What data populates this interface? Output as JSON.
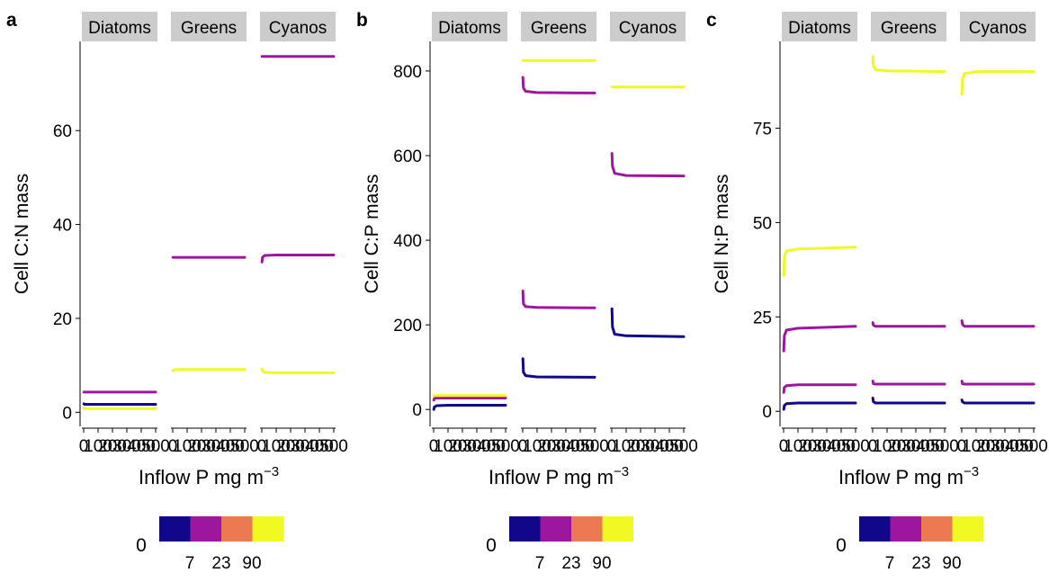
{
  "colors": {
    "strip_bg": "#cccccc",
    "axis": "#000000",
    "series_0_7": "#10078a",
    "series_7_23": "#9c179e",
    "series_23_90": "#ed7953",
    "series_90": "#f0f921"
  },
  "legend": {
    "zero_label": "0",
    "tick_labels": [
      "7",
      "23",
      "90"
    ],
    "swatches": [
      "#10078a",
      "#9c179e",
      "#ed7953",
      "#f0f921"
    ]
  },
  "chart_data": [
    {
      "panel_label": "a",
      "type": "line",
      "ylabel": "Cell C:N mass",
      "xlabel": "Inflow P mg m",
      "xlabel_sup": "−3",
      "facets": [
        "Diatoms",
        "Greens",
        "Cyanos"
      ],
      "xlim": [
        0,
        500
      ],
      "x_ticks": [
        0,
        100,
        200,
        300,
        400,
        500
      ],
      "x_tick_labels": [
        "0",
        "100",
        "200",
        "300",
        "400",
        "500"
      ],
      "ylim": [
        -3,
        79
      ],
      "y_ticks": [
        0,
        20,
        40,
        60
      ],
      "y_tick_labels": [
        "0",
        "20",
        "40",
        "60"
      ],
      "series": [
        {
          "facet": 0,
          "color": "#10078a",
          "x": [
            1,
            5,
            20,
            100,
            500
          ],
          "y": [
            1.8,
            1.7,
            1.7,
            1.7,
            1.7
          ]
        },
        {
          "facet": 0,
          "color": "#9c179e",
          "x": [
            1,
            5,
            20,
            100,
            500
          ],
          "y": [
            4.3,
            4.3,
            4.3,
            4.3,
            4.3
          ]
        },
        {
          "facet": 0,
          "color": "#f0f921",
          "x": [
            1,
            5,
            20,
            100,
            500
          ],
          "y": [
            0.9,
            0.8,
            0.8,
            0.8,
            0.8
          ]
        },
        {
          "facet": 1,
          "color": "#9c179e",
          "x": [
            1,
            5,
            20,
            100,
            500
          ],
          "y": [
            33,
            33,
            33,
            33,
            33
          ]
        },
        {
          "facet": 1,
          "color": "#f0f921",
          "x": [
            1,
            5,
            20,
            100,
            500
          ],
          "y": [
            8.8,
            9.0,
            9.1,
            9.1,
            9.1
          ]
        },
        {
          "facet": 2,
          "color": "#9c179e",
          "x": [
            1,
            5,
            20,
            100,
            500
          ],
          "y": [
            32,
            33,
            33.4,
            33.5,
            33.5
          ]
        },
        {
          "facet": 2,
          "color": "#f0f921",
          "x": [
            1,
            5,
            20,
            100,
            500
          ],
          "y": [
            9.2,
            8.8,
            8.5,
            8.4,
            8.4
          ]
        },
        {
          "facet": 2,
          "color": "#9c179e",
          "x": [
            1,
            5,
            20,
            100,
            500
          ],
          "y": [
            75.8,
            75.8,
            75.8,
            75.8,
            75.8
          ]
        }
      ]
    },
    {
      "panel_label": "b",
      "type": "line",
      "ylabel": "Cell C:P mass",
      "xlabel": "Inflow P mg m",
      "xlabel_sup": "−3",
      "facets": [
        "Diatoms",
        "Greens",
        "Cyanos"
      ],
      "xlim": [
        0,
        500
      ],
      "x_ticks": [
        0,
        100,
        200,
        300,
        400,
        500
      ],
      "x_tick_labels": [
        "0",
        "100",
        "200",
        "300",
        "400",
        "500"
      ],
      "ylim": [
        -40,
        870
      ],
      "y_ticks": [
        0,
        200,
        400,
        600,
        800
      ],
      "y_tick_labels": [
        "0",
        "200",
        "400",
        "600",
        "800"
      ],
      "series": [
        {
          "facet": 0,
          "color": "#10078a",
          "x": [
            1,
            5,
            20,
            100,
            500
          ],
          "y": [
            0,
            6,
            9,
            10,
            10
          ]
        },
        {
          "facet": 0,
          "color": "#9c179e",
          "x": [
            1,
            5,
            20,
            100,
            500
          ],
          "y": [
            22,
            26,
            27,
            27,
            27
          ]
        },
        {
          "facet": 0,
          "color": "#f0f921",
          "x": [
            1,
            5,
            20,
            100,
            500
          ],
          "y": [
            33,
            33,
            33,
            33,
            33
          ]
        },
        {
          "facet": 1,
          "color": "#10078a",
          "x": [
            1,
            5,
            20,
            100,
            500
          ],
          "y": [
            120,
            88,
            80,
            77,
            76
          ]
        },
        {
          "facet": 1,
          "color": "#9c179e",
          "x": [
            1,
            5,
            20,
            100,
            500
          ],
          "y": [
            280,
            250,
            243,
            241,
            240
          ]
        },
        {
          "facet": 1,
          "color": "#9c179e",
          "x": [
            1,
            5,
            20,
            100,
            500
          ],
          "y": [
            785,
            760,
            752,
            749,
            748
          ]
        },
        {
          "facet": 1,
          "color": "#f0f921",
          "x": [
            1,
            5,
            20,
            100,
            500
          ],
          "y": [
            825,
            825,
            825,
            825,
            825
          ]
        },
        {
          "facet": 2,
          "color": "#10078a",
          "x": [
            1,
            5,
            20,
            100,
            500
          ],
          "y": [
            238,
            195,
            178,
            174,
            172
          ]
        },
        {
          "facet": 2,
          "color": "#9c179e",
          "x": [
            1,
            5,
            20,
            100,
            500
          ],
          "y": [
            605,
            575,
            558,
            553,
            552
          ]
        },
        {
          "facet": 2,
          "color": "#f0f921",
          "x": [
            1,
            5,
            20,
            100,
            500
          ],
          "y": [
            762,
            762,
            762,
            762,
            762
          ]
        }
      ]
    },
    {
      "panel_label": "c",
      "type": "line",
      "ylabel": "Cell N:P mass",
      "xlabel": "Inflow P mg m",
      "xlabel_sup": "−3",
      "facets": [
        "Diatoms",
        "Greens",
        "Cyanos"
      ],
      "xlim": [
        0,
        500
      ],
      "x_ticks": [
        0,
        100,
        200,
        300,
        400,
        500
      ],
      "x_tick_labels": [
        "0",
        "100",
        "200",
        "300",
        "400",
        "500"
      ],
      "ylim": [
        -4,
        98
      ],
      "y_ticks": [
        0,
        25,
        50,
        75
      ],
      "y_tick_labels": [
        "0",
        "25",
        "50",
        "75"
      ],
      "series": [
        {
          "facet": 0,
          "color": "#10078a",
          "x": [
            1,
            5,
            20,
            100,
            500
          ],
          "y": [
            0.5,
            1.5,
            2,
            2.2,
            2.2
          ]
        },
        {
          "facet": 0,
          "color": "#9c179e",
          "x": [
            1,
            5,
            20,
            100,
            500
          ],
          "y": [
            5,
            6.3,
            6.8,
            7,
            7
          ]
        },
        {
          "facet": 0,
          "color": "#9c179e",
          "x": [
            1,
            5,
            20,
            100,
            500
          ],
          "y": [
            16,
            20,
            21.5,
            22,
            22.5
          ]
        },
        {
          "facet": 0,
          "color": "#f0f921",
          "x": [
            1,
            5,
            20,
            100,
            500
          ],
          "y": [
            36,
            41,
            42.5,
            43,
            43.5
          ]
        },
        {
          "facet": 1,
          "color": "#10078a",
          "x": [
            1,
            5,
            20,
            100,
            500
          ],
          "y": [
            3.5,
            2.5,
            2.2,
            2.2,
            2.2
          ]
        },
        {
          "facet": 1,
          "color": "#9c179e",
          "x": [
            1,
            5,
            20,
            100,
            500
          ],
          "y": [
            8,
            7.3,
            7.2,
            7.2,
            7.2
          ]
        },
        {
          "facet": 1,
          "color": "#9c179e",
          "x": [
            1,
            5,
            20,
            100,
            500
          ],
          "y": [
            23.5,
            22.8,
            22.5,
            22.5,
            22.5
          ]
        },
        {
          "facet": 1,
          "color": "#f0f921",
          "x": [
            1,
            5,
            20,
            100,
            500
          ],
          "y": [
            94,
            91.5,
            90.5,
            90.2,
            90
          ]
        },
        {
          "facet": 2,
          "color": "#10078a",
          "x": [
            1,
            5,
            20,
            100,
            500
          ],
          "y": [
            3,
            2.5,
            2.2,
            2.2,
            2.2
          ]
        },
        {
          "facet": 2,
          "color": "#9c179e",
          "x": [
            1,
            5,
            20,
            100,
            500
          ],
          "y": [
            8,
            7.3,
            7.2,
            7.2,
            7.2
          ]
        },
        {
          "facet": 2,
          "color": "#9c179e",
          "x": [
            1,
            5,
            20,
            100,
            500
          ],
          "y": [
            24,
            23,
            22.5,
            22.5,
            22.5
          ]
        },
        {
          "facet": 2,
          "color": "#f0f921",
          "x": [
            1,
            5,
            20,
            100,
            500
          ],
          "y": [
            84,
            88,
            89.5,
            90,
            90
          ]
        }
      ]
    }
  ]
}
